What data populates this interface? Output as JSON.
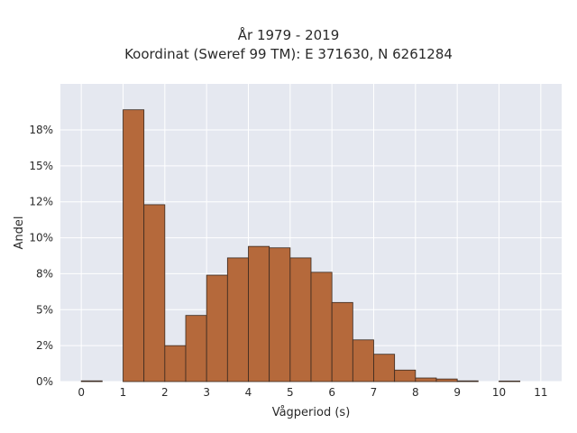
{
  "chart_data": {
    "type": "bar",
    "title": "År 1979 - 2019",
    "subtitle": "Koordinat (Sweref 99 TM): E 371630, N 6261284",
    "xlabel": "Vågperiod (s)",
    "ylabel": "Andel",
    "bin_width": 0.5,
    "bins_start": [
      0,
      0.5,
      1,
      1.5,
      2,
      2.5,
      3,
      3.5,
      4,
      4.5,
      5,
      5.5,
      6,
      6.5,
      7,
      7.5,
      8,
      8.5,
      9,
      9.5,
      10,
      10.5,
      11
    ],
    "values": [
      0.05,
      0,
      18.9,
      12.3,
      2.5,
      4.6,
      7.4,
      8.6,
      9.4,
      9.3,
      8.6,
      7.6,
      5.5,
      2.9,
      1.9,
      0.8,
      0.25,
      0.18,
      0.05,
      0,
      0.04,
      0,
      0
    ],
    "xlim": [
      -0.5,
      11.5
    ],
    "ylim": [
      0,
      20.7
    ],
    "x_ticks": [
      0,
      1,
      2,
      3,
      4,
      5,
      6,
      7,
      8,
      9,
      10,
      11
    ],
    "y_ticks": [
      0,
      2.5,
      5,
      7.5,
      10,
      12.5,
      15,
      17.5
    ],
    "y_tick_labels": [
      "0%",
      "2%",
      "5%",
      "8%",
      "10%",
      "12%",
      "15%",
      "18%"
    ],
    "grid": true,
    "bar_color": "#b5693b",
    "bar_edge_color": "#3a2a20",
    "plot_bg": "#e5e8f0",
    "grid_color": "#ffffff"
  }
}
